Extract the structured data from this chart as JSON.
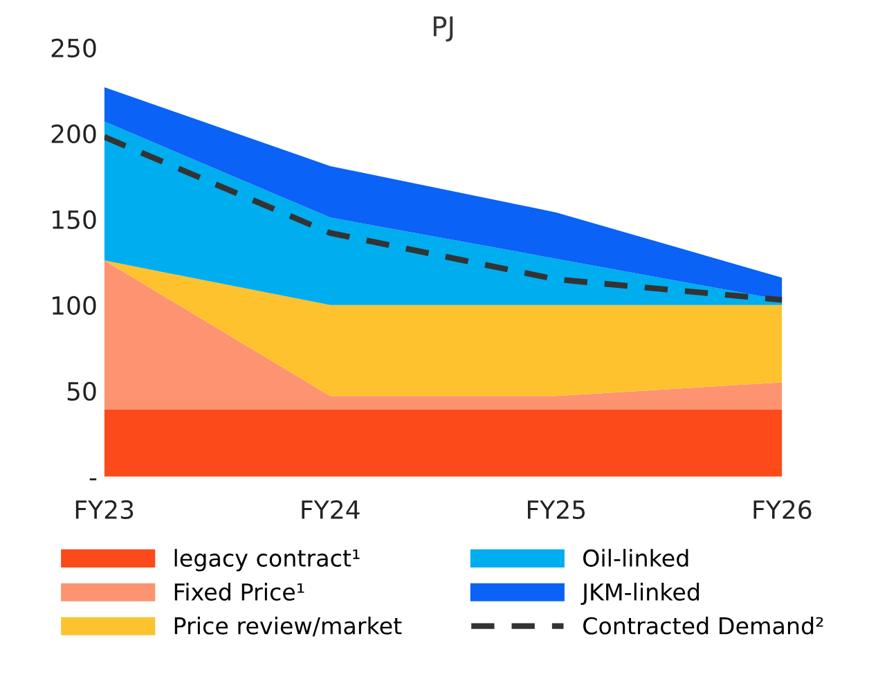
{
  "chart_data": {
    "type": "area",
    "stacked": true,
    "title": "PJ",
    "categories": [
      "FY23",
      "FY24",
      "FY25",
      "FY26"
    ],
    "series": [
      {
        "name": "legacy contract¹",
        "color": "#fc4a1a",
        "values": [
          39,
          39,
          39,
          39
        ]
      },
      {
        "name": "Fixed Price¹",
        "color": "#fd9371",
        "values": [
          87,
          8,
          8,
          16
        ]
      },
      {
        "name": "Price review/market",
        "color": "#fec22f",
        "values": [
          0,
          53,
          53,
          45
        ]
      },
      {
        "name": "Oil-linked",
        "color": "#00adef",
        "values": [
          81,
          51,
          27,
          3
        ]
      },
      {
        "name": "JKM-linked",
        "color": "#0a62f6",
        "values": [
          20,
          30,
          27,
          13
        ]
      },
      {
        "name": "Contracted Demand²",
        "type": "line",
        "color": "#333333",
        "line_style": "dashed",
        "values": [
          198,
          142,
          115,
          103
        ]
      }
    ],
    "ylim": [
      0,
      250
    ],
    "yticks": [
      {
        "value": 0,
        "label": "-"
      },
      50,
      100,
      150,
      200,
      250
    ],
    "legend": "bottom"
  }
}
